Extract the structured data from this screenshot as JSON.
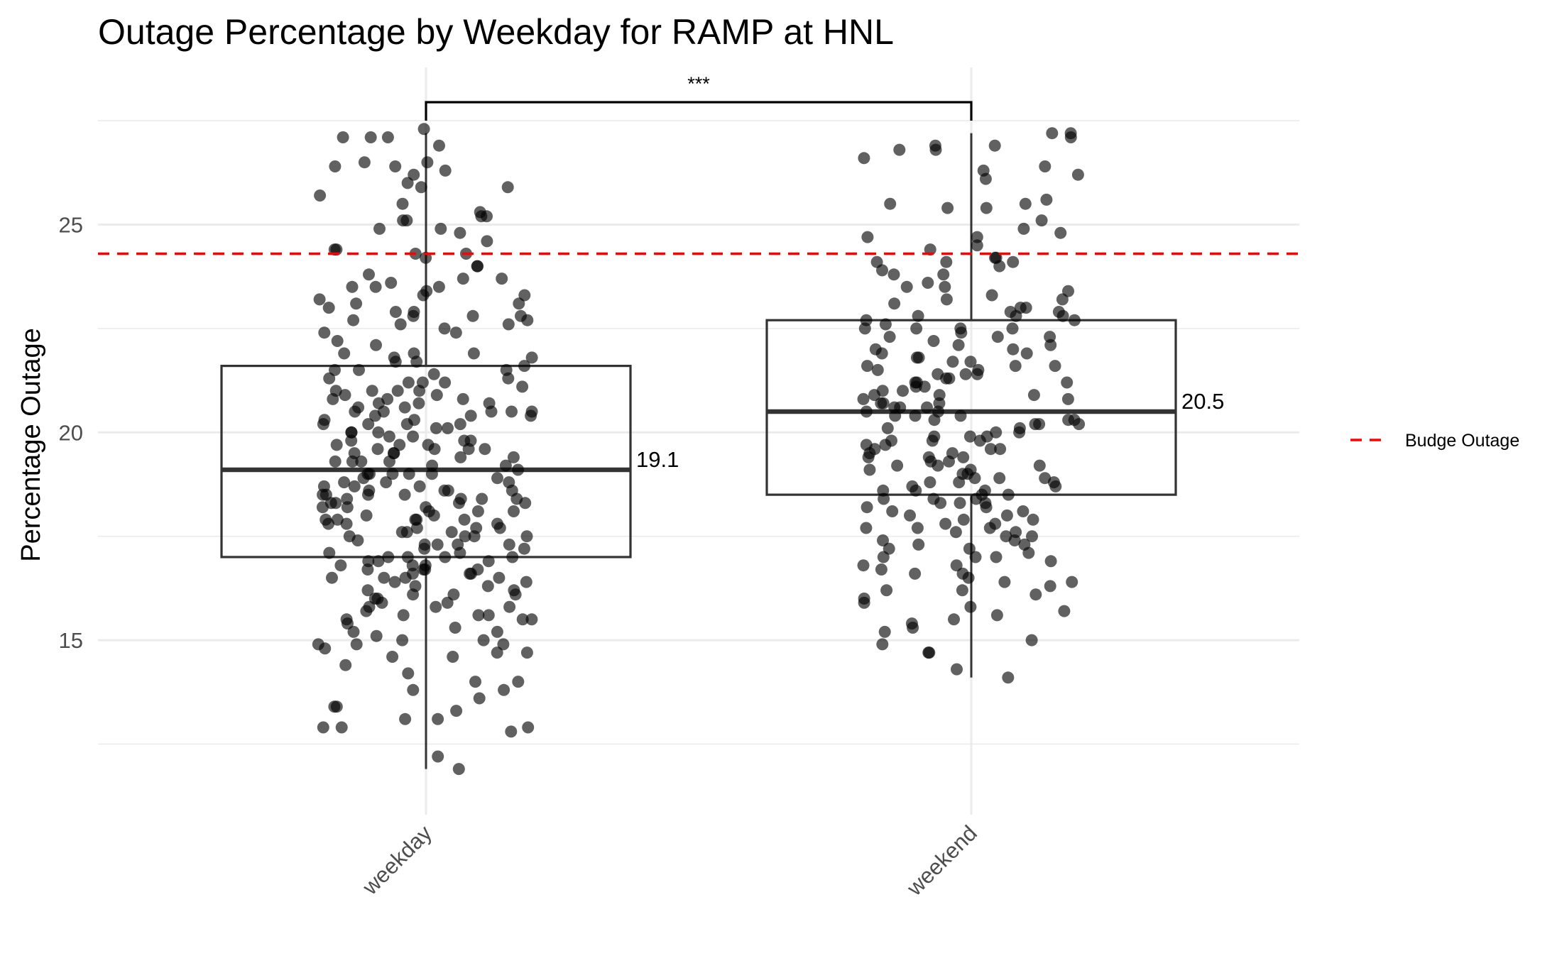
{
  "chart_data": {
    "type": "box",
    "title": "Outage Percentage by Weekday for RAMP at HNL",
    "xlabel": "",
    "ylabel": "Percentage Outage",
    "ylim": [
      10.8,
      29.5
    ],
    "yticks": [
      15,
      20,
      25
    ],
    "grid": true,
    "legend_position": "right",
    "categories": [
      "weekday",
      "weekend"
    ],
    "boxes": [
      {
        "category": "weekday",
        "whisker_low": 11.9,
        "q1": 17.0,
        "median": 19.1,
        "q3": 21.6,
        "whisker_high": 27.2,
        "median_label": "19.1"
      },
      {
        "category": "weekend",
        "whisker_low": 14.1,
        "q1": 18.5,
        "median": 20.5,
        "q3": 22.7,
        "whisker_high": 27.2,
        "median_label": "20.5"
      }
    ],
    "reference_line": {
      "name": "Budge Outage",
      "value": 24.3,
      "color": "#ff0000",
      "style": "dashed"
    },
    "significance": {
      "from": "weekday",
      "to": "weekend",
      "label": "***"
    },
    "points_color": "#000000",
    "points_weekday": [
      27.3,
      26.9,
      27.1,
      27.1,
      26.2,
      26.5,
      26.4,
      25.9,
      26.3,
      25.1,
      24.9,
      25.2,
      24.8,
      24.4,
      24.2,
      23.8,
      23.7,
      23.5,
      23.5,
      23.3,
      23.1,
      23.0,
      22.8,
      22.7,
      21.9,
      21.9,
      21.6,
      21.5,
      21.2,
      20.9,
      20.8,
      20.7,
      20.5,
      20.4,
      20.3,
      20.2,
      20.1,
      19.9,
      19.8,
      19.6,
      19.5,
      19.5,
      19.3,
      19.1,
      19.0,
      18.8,
      18.7,
      18.6,
      18.6,
      18.5,
      18.4,
      18.3,
      18.2,
      18.0,
      17.9,
      17.9,
      17.8,
      17.6,
      17.5,
      17.3,
      17.2,
      17.0,
      16.8,
      16.7,
      16.6,
      16.5,
      16.3,
      16.1,
      16.0,
      15.8,
      15.6,
      15.5,
      15.1,
      15.0,
      14.9,
      14.7,
      14.0,
      13.8,
      13.6,
      13.3,
      13.1,
      12.9,
      27.1,
      26.4,
      26.5,
      25.1,
      24.3,
      24.0,
      23.5,
      23.3,
      23.2,
      22.9,
      22.5,
      22.8,
      22.2,
      21.8,
      21.7,
      21.5,
      21.2,
      21.0,
      20.9,
      20.7,
      20.5,
      20.4,
      20.2,
      20.0,
      19.8,
      19.6,
      19.4,
      19.2,
      19.0,
      18.9,
      18.7,
      18.5,
      18.3,
      18.2,
      18.0,
      17.8,
      17.7,
      17.5,
      17.3,
      17.1,
      16.9,
      16.7,
      16.5,
      16.4,
      16.2,
      15.9,
      15.6,
      15.4,
      15.2,
      14.9,
      14.6,
      13.4,
      13.1,
      12.9,
      25.9,
      26.0,
      25.7,
      25.2,
      24.3,
      24.0,
      23.6,
      23.1,
      22.8,
      22.4,
      22.1,
      21.7,
      21.5,
      21.3,
      21.0,
      20.8,
      20.6,
      20.5,
      20.3,
      20.1,
      19.9,
      19.7,
      19.6,
      19.4,
      19.2,
      19.0,
      18.8,
      18.6,
      18.4,
      18.2,
      18.1,
      17.9,
      17.7,
      17.5,
      17.3,
      17.0,
      16.8,
      16.6,
      16.3,
      16.1,
      15.8,
      15.5,
      15.3,
      14.7,
      13.8,
      13.4,
      12.9,
      12.2,
      11.9,
      25.5,
      25.3,
      24.6,
      23.4,
      22.9,
      22.6,
      21.9,
      21.3,
      21.0,
      20.7,
      20.5,
      20.2,
      20.0,
      19.8,
      19.5,
      19.3,
      19.0,
      18.8,
      18.5,
      18.3,
      18.1,
      17.9,
      17.6,
      17.4,
      17.1,
      16.9,
      16.7,
      16.5,
      16.2,
      15.9,
      15.6,
      15.2,
      14.9,
      14.6,
      14.2,
      12.8,
      24.9,
      24.4,
      22.7,
      21.2,
      21.0,
      20.6,
      19.7,
      19.3,
      18.7,
      18.3,
      18.1,
      17.9,
      17.3,
      17.0,
      16.8,
      16.5,
      15.7,
      15.0,
      14.8,
      14.4,
      14.0,
      23.7,
      22.4,
      21.4,
      20.0,
      19.0,
      18.5,
      17.7,
      17.2,
      16.7,
      16.1,
      15.8,
      15.5,
      22.6,
      21.1,
      20.5,
      20.2,
      19.7,
      18.9,
      18.4,
      17.5,
      17.0,
      16.4,
      16.0,
      21.8,
      20.8,
      19.3,
      18.4,
      17.6,
      16.9,
      20.4,
      19.6,
      18.6,
      17.8,
      16.6
    ],
    "points_weekend": [
      27.1,
      26.9,
      26.9,
      26.8,
      26.3,
      26.1,
      25.5,
      25.4,
      25.1,
      24.9,
      24.7,
      24.5,
      24.2,
      24.1,
      23.9,
      23.8,
      23.5,
      23.2,
      23.0,
      22.8,
      22.5,
      22.3,
      22.1,
      21.9,
      21.6,
      21.4,
      21.2,
      21.1,
      20.9,
      20.7,
      20.5,
      20.3,
      20.2,
      20.0,
      19.8,
      19.6,
      19.4,
      19.2,
      19.0,
      18.8,
      18.6,
      18.4,
      18.2,
      18.0,
      17.7,
      17.5,
      17.2,
      17.0,
      16.8,
      16.5,
      16.2,
      15.9,
      15.6,
      15.2,
      14.9,
      14.7,
      14.3,
      14.1,
      27.2,
      27.2,
      26.8,
      26.6,
      26.4,
      26.2,
      25.6,
      25.5,
      25.4,
      24.8,
      24.7,
      24.4,
      24.2,
      24.1,
      24.0,
      23.8,
      23.6,
      23.4,
      23.3,
      23.1,
      22.9,
      22.8,
      22.7,
      22.5,
      22.3,
      22.2,
      22.0,
      21.8,
      21.7,
      21.5,
      21.4,
      21.2,
      21.0,
      20.9,
      20.7,
      20.6,
      20.4,
      20.3,
      20.1,
      19.9,
      19.7,
      19.5,
      19.3,
      19.2,
      19.0,
      18.9,
      18.7,
      18.5,
      18.3,
      18.1,
      17.9,
      17.7,
      17.5,
      17.3,
      17.0,
      16.8,
      16.6,
      16.3,
      16.2,
      15.8,
      15.5,
      15.4,
      15.0,
      24.1,
      23.5,
      23.0,
      22.6,
      22.4,
      21.9,
      21.5,
      21.3,
      21.1,
      20.8,
      20.4,
      20.1,
      19.8,
      19.5,
      19.1,
      18.8,
      18.5,
      18.2,
      17.9,
      17.6,
      17.4,
      17.1,
      16.7,
      16.4,
      16.1,
      15.7,
      15.3,
      14.7,
      23.2,
      22.9,
      22.5,
      22.1,
      21.7,
      21.3,
      20.9,
      20.6,
      20.2,
      19.9,
      19.6,
      19.2,
      18.9,
      18.6,
      18.3,
      17.8,
      17.4,
      17.0,
      16.6,
      16.0,
      22.7,
      22.3,
      21.8,
      21.2,
      20.8,
      20.4,
      20.0,
      19.6,
      19.3,
      18.9,
      18.4,
      18.1,
      17.7,
      17.3,
      16.9,
      16.4,
      22.5,
      21.6,
      21.0,
      20.6,
      20.2,
      19.7,
      19.4,
      18.7,
      18.3,
      17.8,
      17.2,
      22.8,
      21.4,
      20.7,
      19.9,
      19.1,
      18.6,
      17.6,
      22.0,
      20.3,
      19.4,
      18.8,
      18.0,
      21.6,
      20.5,
      19.8,
      18.4
    ]
  }
}
